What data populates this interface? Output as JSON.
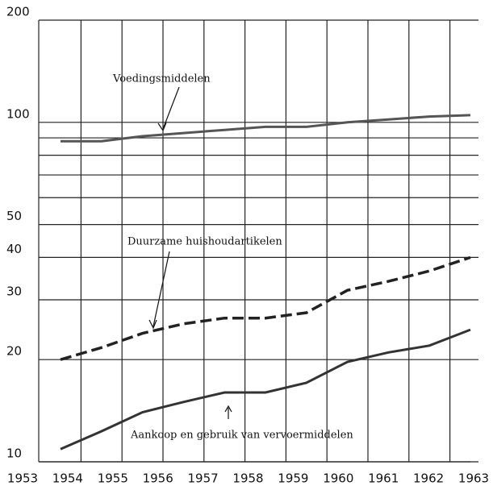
{
  "chart_data": {
    "type": "line",
    "x": [
      1953,
      1954,
      1955,
      1956,
      1957,
      1958,
      1959,
      1960,
      1961,
      1962,
      1963
    ],
    "xticks": [
      1953,
      1954,
      1955,
      1956,
      1957,
      1958,
      1959,
      1960,
      1961,
      1962,
      1963
    ],
    "log_scale_y": true,
    "ylim": [
      10,
      200
    ],
    "yticks": [
      10,
      20,
      30,
      40,
      50,
      100,
      200
    ],
    "minor_grid_y": [
      60,
      70,
      80,
      90
    ],
    "grid": true,
    "annotations": [
      "Voedingsmiddelen",
      "Duurzame huishoudartikelen",
      "Aankoop en gebruik van vervoermiddelen"
    ],
    "series": [
      {
        "color": "#555",
        "style": "solid",
        "values": [
          88,
          88,
          91,
          93,
          95,
          97,
          97,
          100,
          102,
          104,
          105
        ]
      },
      {
        "color": "#222",
        "style": "dashed",
        "values": [
          20,
          21.7,
          23.9,
          25.5,
          26.5,
          26.5,
          27.5,
          32,
          34,
          36.5,
          40
        ]
      },
      {
        "color": "#333",
        "style": "solid",
        "values": [
          10.9,
          12.3,
          14,
          15,
          16,
          16,
          17.1,
          19.7,
          21,
          22,
          24.5
        ]
      }
    ]
  }
}
